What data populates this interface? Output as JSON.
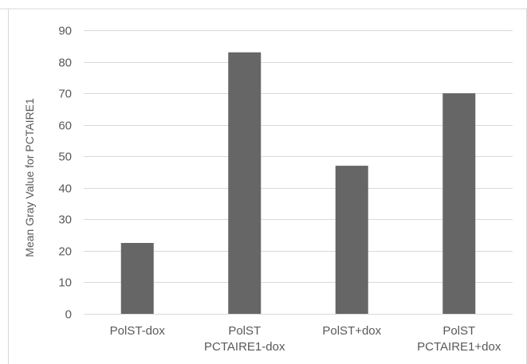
{
  "chart_data": {
    "type": "bar",
    "title": "",
    "xlabel": "",
    "ylabel": "Mean Gray Value for PCTAIRE1",
    "categories": [
      [
        "PolST-dox"
      ],
      [
        "PolST",
        "PCTAIRE1-dox"
      ],
      [
        "PolST+dox"
      ],
      [
        "PolST",
        "PCTAIRE1+dox"
      ]
    ],
    "values": [
      22.5,
      83,
      47,
      70
    ],
    "ylim": [
      0,
      90
    ],
    "yticks": [
      0,
      10,
      20,
      30,
      40,
      50,
      60,
      70,
      80,
      90
    ],
    "grid": true,
    "legend": "none",
    "colors": {
      "bar": "#666666",
      "grid": "#d9d9d9",
      "axis": "#d9d9d9",
      "text": "#595959",
      "frame": "#d9d9d9"
    }
  }
}
